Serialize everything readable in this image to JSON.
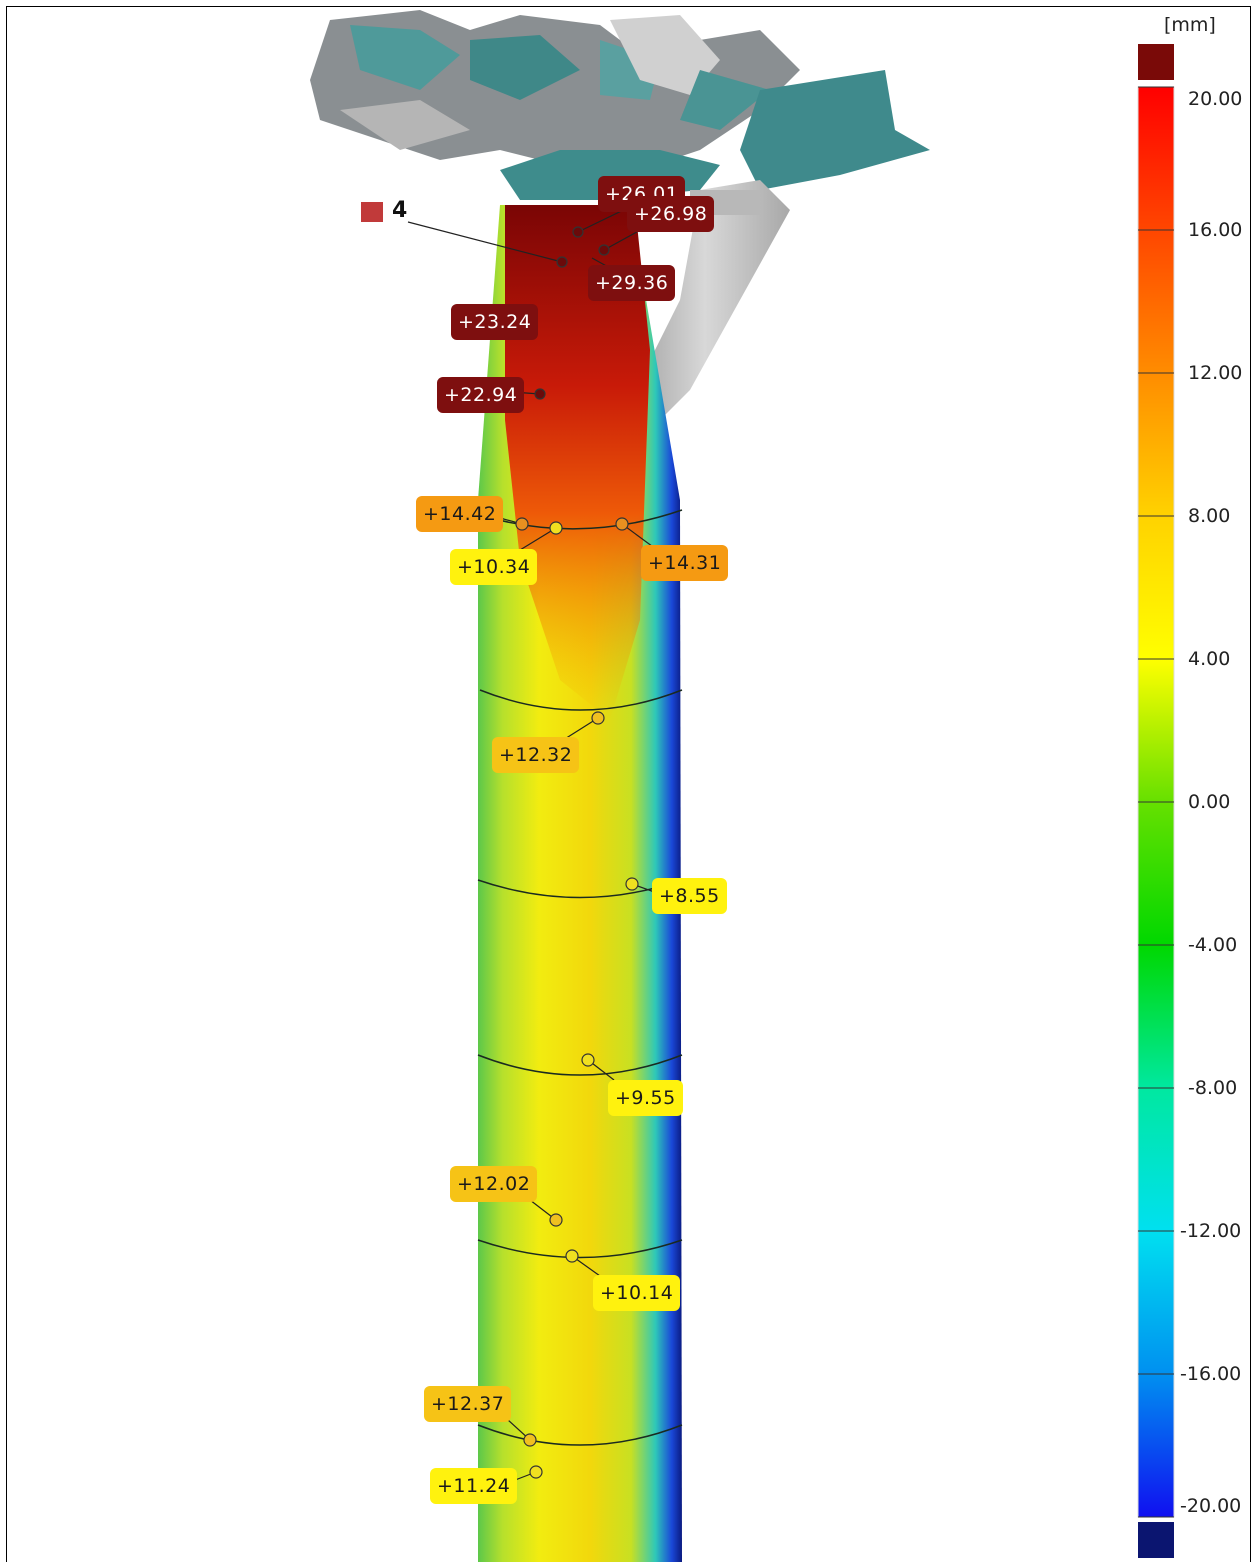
{
  "legend": {
    "unit": "[mm]",
    "ticks": [
      "20.00",
      "16.00",
      "12.00",
      "8.00",
      "4.00",
      "0.00",
      "-4.00",
      "-8.00",
      "-12.00",
      "-16.00",
      "-20.00"
    ],
    "over_color": "#7a0a08",
    "under_color": "#0b1570"
  },
  "marker": {
    "number": "4",
    "color": "#c13a3a"
  },
  "measurements": [
    {
      "value": "+26.01",
      "style": "dark"
    },
    {
      "value": "+26.98",
      "style": "dark"
    },
    {
      "value": "+29.36",
      "style": "dark"
    },
    {
      "value": "+23.24",
      "style": "dark"
    },
    {
      "value": "+22.94",
      "style": "dark"
    },
    {
      "value": "+14.42",
      "style": "orange"
    },
    {
      "value": "+10.34",
      "style": "yellow"
    },
    {
      "value": "+14.31",
      "style": "orange"
    },
    {
      "value": "+12.32",
      "style": "lorange"
    },
    {
      "value": "+8.55",
      "style": "yellow"
    },
    {
      "value": "+9.55",
      "style": "yellow"
    },
    {
      "value": "+12.02",
      "style": "lorange"
    },
    {
      "value": "+10.14",
      "style": "yellow"
    },
    {
      "value": "+12.37",
      "style": "lorange"
    },
    {
      "value": "+11.24",
      "style": "yellow"
    }
  ]
}
